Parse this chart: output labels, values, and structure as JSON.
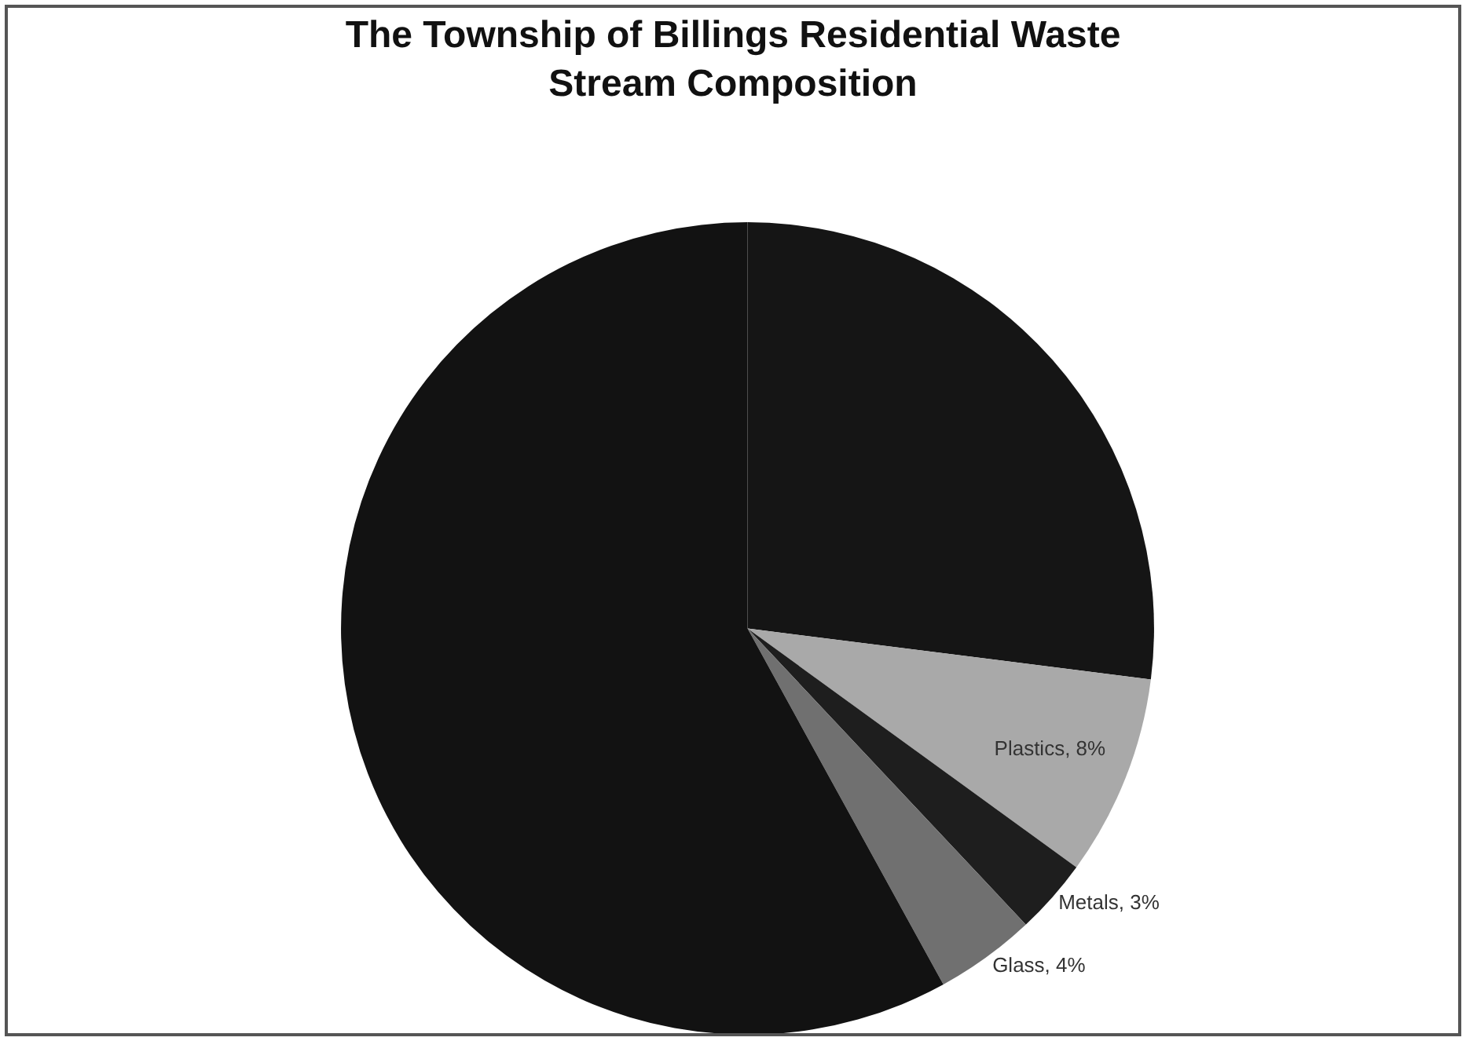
{
  "chart_data": {
    "type": "pie",
    "title": "The Township of Billings Residential Waste Stream Composition",
    "categories": [
      null,
      "Plastics",
      "Metals",
      "Glass",
      null
    ],
    "values": [
      27,
      8,
      3,
      4,
      58
    ],
    "colors": [
      "#151515",
      "#a9a9a9",
      "#1e1e1e",
      "#707070",
      "#121212"
    ],
    "value_labels": [
      null,
      "8%",
      "3%",
      "4%",
      null
    ],
    "legend": false
  }
}
